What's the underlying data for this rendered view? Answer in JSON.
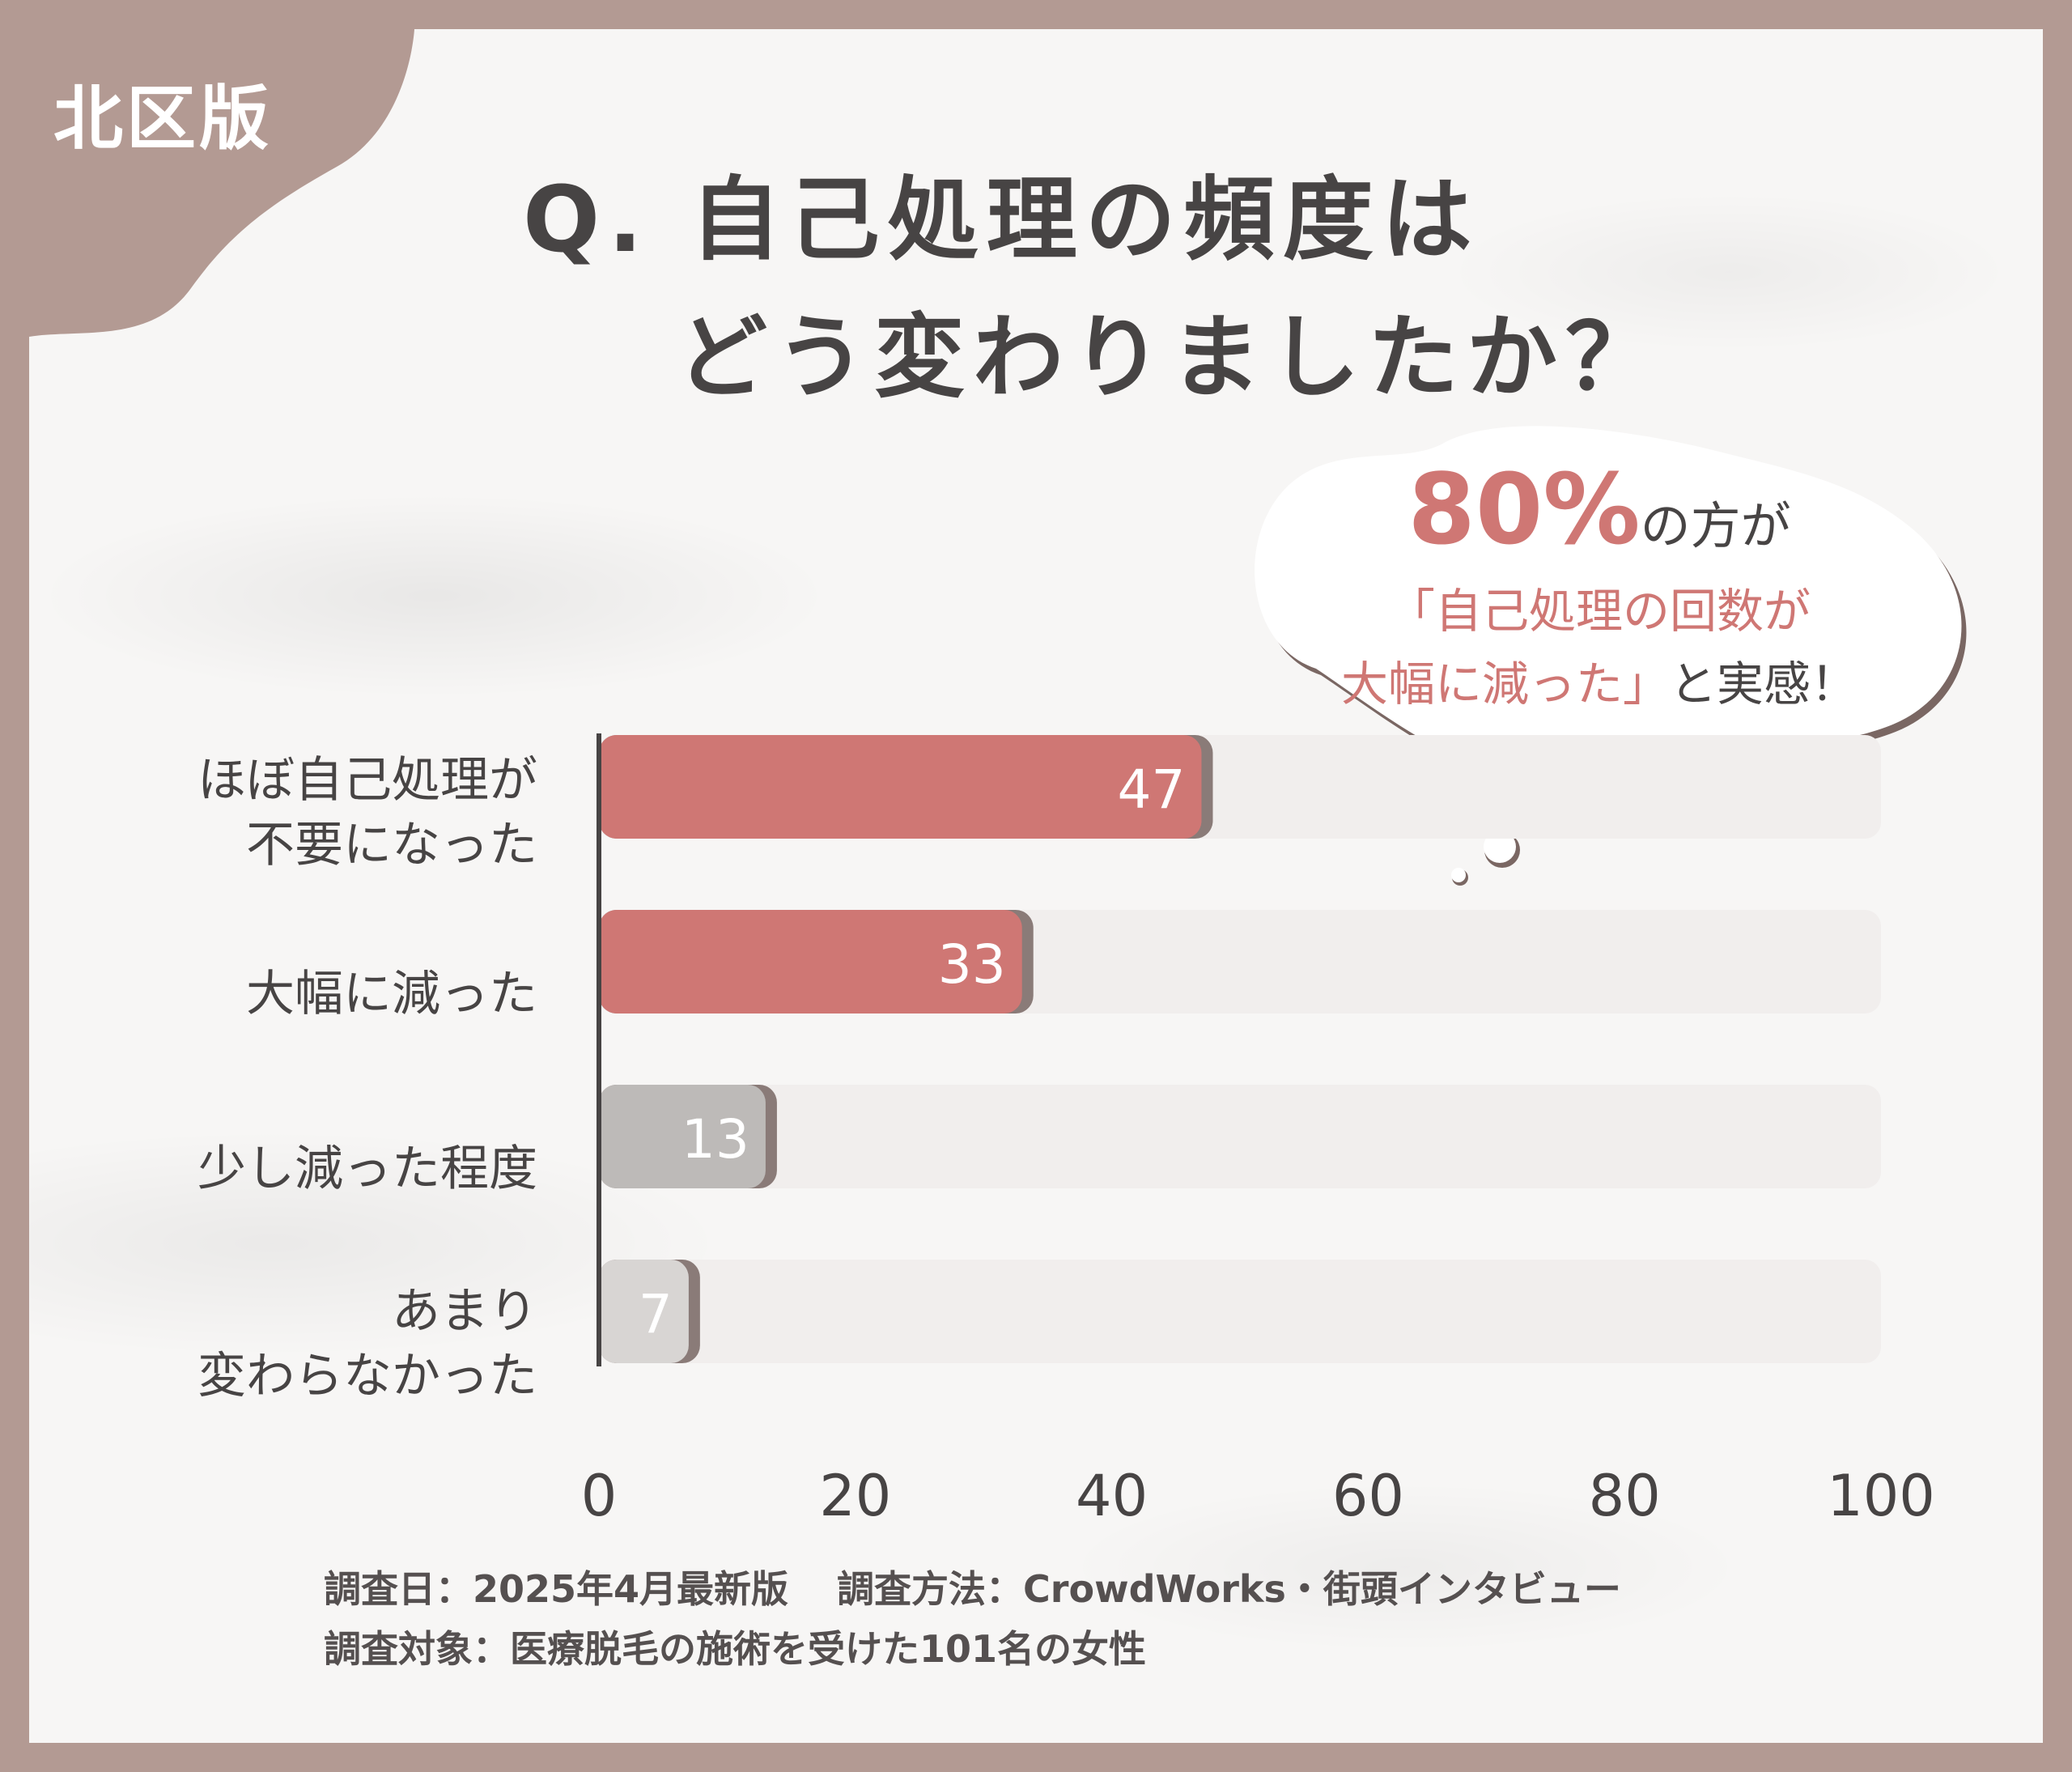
{
  "region_badge": "北区版",
  "title": {
    "line1": "Q. 自己処理の頻度は",
    "line2": "どう変わりましたか？"
  },
  "callout": {
    "highlight": "80%",
    "lead_rest": "の方が",
    "quote_line1": "「自己処理の回数が",
    "quote_line2_pink": "大幅に減った」",
    "quote_line2_dark": "と実感！"
  },
  "chart_data": {
    "type": "bar",
    "orientation": "horizontal",
    "categories": [
      "ほぼ自己処理が\n不要になった",
      "大幅に減った",
      "少し減った程度",
      "あまり\n変わらなかった"
    ],
    "values": [
      47,
      33,
      13,
      7
    ],
    "value_labels": [
      "47",
      "33",
      "13",
      "7"
    ],
    "xlim": [
      0,
      100
    ],
    "x_ticks": [
      "0",
      "20",
      "40",
      "60",
      "80",
      "100"
    ],
    "colors": {
      "highlight": "#cf7774",
      "muted": "#bdbab8",
      "light": "#d8d5d3",
      "track": "#f1eeed"
    },
    "bar_colors": [
      "#cf7774",
      "#cf7774",
      "#bdbab8",
      "#d8d5d3"
    ]
  },
  "footnotes": {
    "survey_date": "調査日：2025年4月最新版",
    "survey_method": "調査方法：CrowdWorks・街頭インタビュー",
    "survey_target": "調査対象：医療脱毛の施術を受けた101名の女性"
  },
  "colors": {
    "frame": "#b39a93",
    "card": "#f7f6f5",
    "text": "#474444",
    "accent": "#cf7774"
  }
}
